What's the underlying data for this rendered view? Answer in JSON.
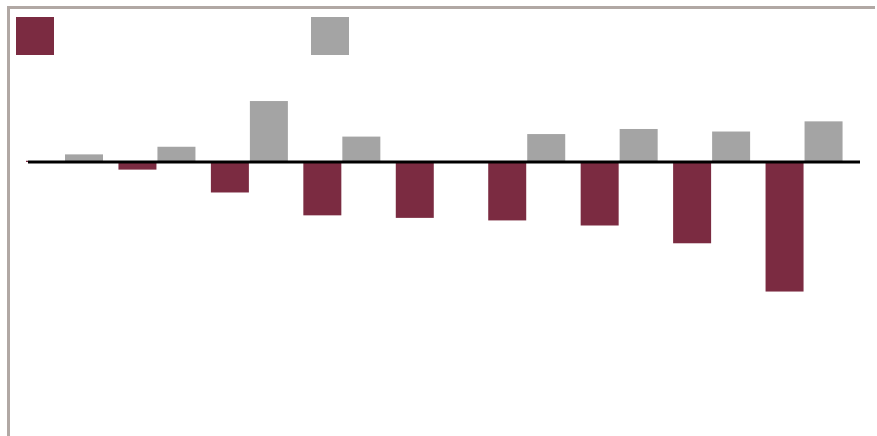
{
  "chart_data": {
    "type": "bar",
    "title": "",
    "xlabel": "",
    "ylabel": "",
    "categories": [
      "",
      "",
      "",
      "",
      "",
      "",
      "",
      "",
      ""
    ],
    "series": [
      {
        "color": "#7b2b41",
        "values": [
          0.5,
          -3,
          -12,
          -21,
          -22,
          -23,
          -25,
          -32,
          -51
        ]
      },
      {
        "color": "#a4a4a4",
        "values": [
          3,
          6,
          24,
          10,
          0.4,
          11,
          13,
          12,
          16
        ]
      }
    ],
    "ylim": [
      -106,
      60
    ],
    "grid": false,
    "legend_position": "top"
  }
}
